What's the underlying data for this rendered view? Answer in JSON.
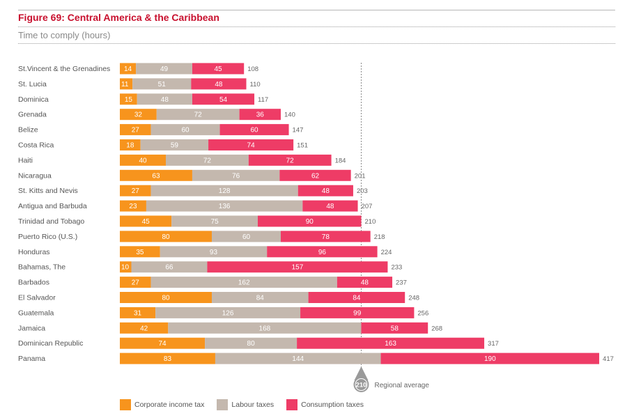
{
  "header": {
    "title": "Figure 69: Central America & the Caribbean",
    "subtitle": "Time to comply (hours)"
  },
  "colors": {
    "corporate": "#f7941d",
    "labour": "#c4b8ae",
    "consumption": "#ee3c66",
    "title": "#c8102e"
  },
  "chart_data": {
    "type": "bar",
    "orientation": "horizontal",
    "stacked": true,
    "categories": [
      "St.Vincent & the Grenadines",
      "St. Lucia",
      "Dominica",
      "Grenada",
      "Belize",
      "Costa Rica",
      "Haiti",
      "Nicaragua",
      "St. Kitts and Nevis",
      "Antigua and Barbuda",
      "Trinidad and Tobago",
      "Puerto Rico (U.S.)",
      "Honduras",
      "Bahamas, The",
      "Barbados",
      "El Salvador",
      "Guatemala",
      "Jamaica",
      "Dominican Republic",
      "Panama"
    ],
    "series": [
      {
        "name": "Corporate income tax",
        "values": [
          14,
          11,
          15,
          32,
          27,
          18,
          40,
          63,
          27,
          23,
          45,
          80,
          35,
          10,
          27,
          80,
          31,
          42,
          74,
          83
        ]
      },
      {
        "name": "Labour taxes",
        "values": [
          49,
          51,
          48,
          72,
          60,
          59,
          72,
          76,
          128,
          136,
          75,
          60,
          93,
          66,
          162,
          84,
          126,
          168,
          80,
          144
        ]
      },
      {
        "name": "Consumption taxes",
        "values": [
          45,
          48,
          54,
          36,
          60,
          74,
          72,
          62,
          48,
          48,
          90,
          78,
          96,
          157,
          48,
          84,
          99,
          58,
          163,
          190
        ]
      }
    ],
    "totals": [
      108,
      110,
      117,
      140,
      147,
      151,
      184,
      201,
      203,
      207,
      210,
      218,
      224,
      233,
      237,
      248,
      256,
      268,
      317,
      417
    ],
    "reference_line": {
      "value": 210,
      "label": "Regional average"
    },
    "title": "Figure 69: Central America & the Caribbean",
    "xlabel": "Time to comply (hours)",
    "xlim": [
      0,
      417
    ],
    "grid": false,
    "legend_position": "bottom"
  }
}
